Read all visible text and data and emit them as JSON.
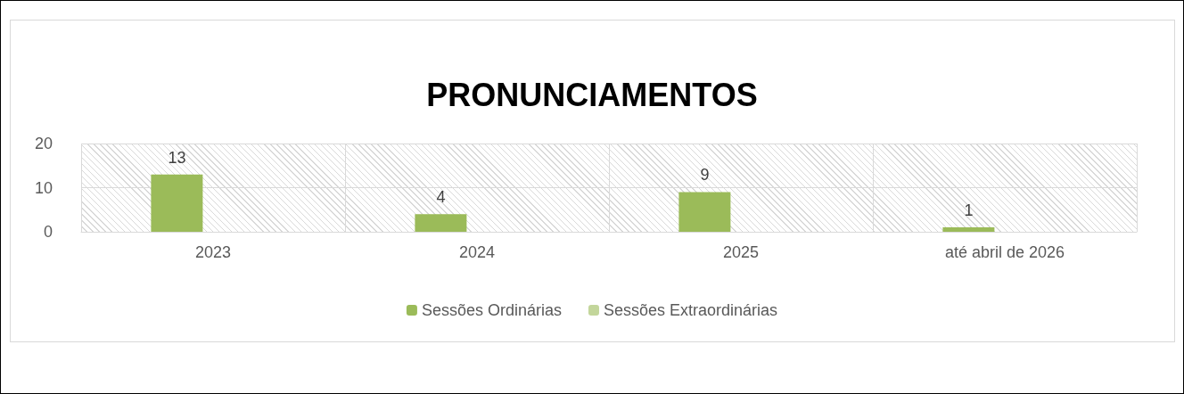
{
  "chart_data": {
    "type": "bar",
    "title": "PRONUNCIAMENTOS",
    "categories": [
      "2023",
      "2024",
      "2025",
      "até abril de 2026"
    ],
    "series": [
      {
        "name": "Sessões Ordinárias",
        "color": "#9bbb59",
        "values": [
          13,
          4,
          9,
          1
        ]
      },
      {
        "name": "Sessões Extraordinárias",
        "color": "#c3d69b",
        "values": [
          null,
          null,
          null,
          null
        ]
      }
    ],
    "ylim": [
      0,
      20
    ],
    "yticks": [
      0,
      10,
      20
    ],
    "grid": true,
    "legend": "bottom",
    "data_labels": true
  }
}
